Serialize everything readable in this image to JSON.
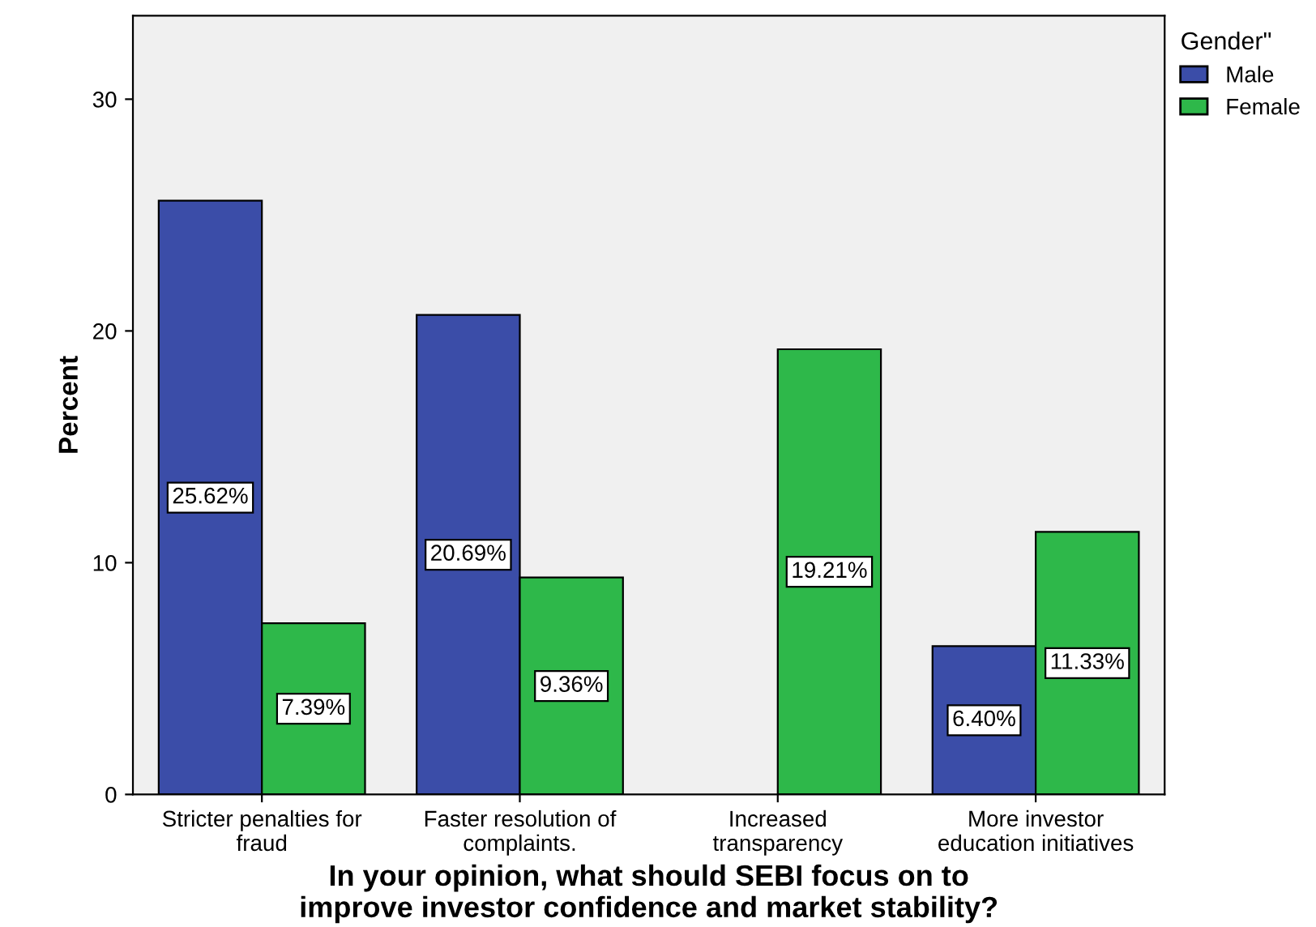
{
  "chart_data": {
    "type": "bar",
    "xlabel": "In your opinion, what should SEBI focus on to\nimprove investor confidence and market stability?",
    "ylabel": "Percent",
    "legend_title": "Gender\"",
    "categories": [
      "Stricter penalties for\nfraud",
      "Faster resolution of\ncomplaints.",
      "Increased\ntransparency",
      "More investor\neducation initiatives"
    ],
    "series": [
      {
        "name": "Male",
        "color": "#3b4da8",
        "values": [
          25.62,
          20.69,
          null,
          6.4
        ],
        "value_labels": [
          "25.62%",
          "20.69%",
          null,
          "6.40%"
        ]
      },
      {
        "name": "Female",
        "color": "#2eb84a",
        "values": [
          7.39,
          9.36,
          19.21,
          11.33
        ],
        "value_labels": [
          "7.39%",
          "9.36%",
          "19.21%",
          "11.33%"
        ]
      }
    ],
    "ylim": [
      0,
      33.6
    ],
    "yticks": [
      0,
      10,
      20,
      30
    ],
    "grid": false,
    "legend": "top right"
  }
}
